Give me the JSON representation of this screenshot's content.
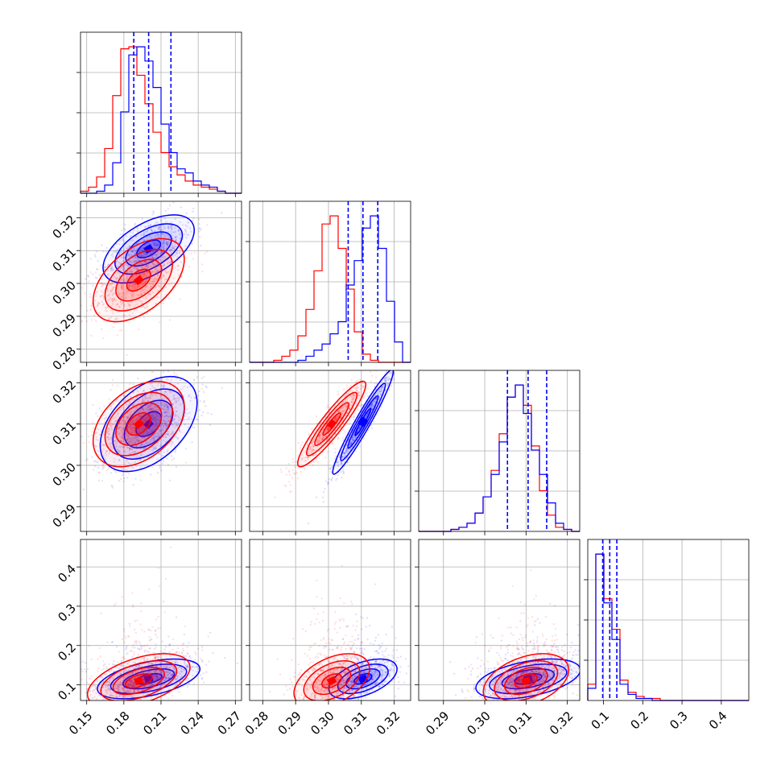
{
  "chart_data": {
    "type": "corner",
    "n_params": 4,
    "series": [
      {
        "name": "",
        "color": "#0000ff"
      },
      {
        "name": "",
        "color": "#ff0000"
      }
    ],
    "grid": true,
    "param_ranges": [
      [
        0.145,
        0.275
      ],
      [
        0.276,
        0.325
      ],
      [
        0.284,
        0.323
      ],
      [
        0.06,
        0.47
      ]
    ],
    "param_ticks": [
      {
        "values": [
          0.15,
          0.18,
          0.21,
          0.24,
          0.27
        ],
        "labels": [
          "0.15",
          "0.18",
          "0.21",
          "0.24",
          "0.27"
        ]
      },
      {
        "values": [
          0.28,
          0.29,
          0.3,
          0.31,
          0.32
        ],
        "labels": [
          "0.28",
          "0.29",
          "0.30",
          "0.31",
          "0.32"
        ]
      },
      {
        "values": [
          0.29,
          0.3,
          0.31,
          0.32
        ],
        "labels": [
          "0.29",
          "0.30",
          "0.31",
          "0.32"
        ]
      },
      {
        "values": [
          0.1,
          0.2,
          0.3,
          0.4
        ],
        "labels": [
          "0.1",
          "0.2",
          "0.3",
          "0.4"
        ]
      }
    ],
    "x_axis_ticks": [
      {
        "values": [
          0.15,
          0.18,
          0.21,
          0.24,
          0.27
        ],
        "labels": [
          "0.15",
          "0.18",
          "0.21",
          "0.24",
          "0.27"
        ]
      },
      {
        "values": [
          0.28,
          0.29,
          0.3,
          0.31,
          0.32
        ],
        "labels": [
          "0.28",
          "0.29",
          "0.30",
          "0.31",
          "0.32"
        ]
      },
      {
        "values": [
          0.29,
          0.3,
          0.31,
          0.32
        ],
        "labels": [
          "0.29",
          "0.30",
          "0.31",
          "0.32"
        ]
      },
      {
        "values": [
          0.1,
          0.2,
          0.3,
          0.4
        ],
        "labels": [
          "0.1",
          "0.2",
          "0.3",
          "0.4"
        ]
      }
    ],
    "y_axis_ticks": [
      null,
      {
        "values": [
          0.28,
          0.29,
          0.3,
          0.31,
          0.32
        ],
        "labels": [
          "0.28",
          "0.29",
          "0.30",
          "0.31",
          "0.32"
        ]
      },
      {
        "values": [
          0.29,
          0.3,
          0.31,
          0.32
        ],
        "labels": [
          "0.29",
          "0.30",
          "0.31",
          "0.32"
        ]
      },
      {
        "values": [
          0.1,
          0.2,
          0.3,
          0.4
        ],
        "labels": [
          "0.1",
          "0.2",
          "0.3",
          "0.4"
        ]
      }
    ],
    "quantile_lines": [
      [
        0.188,
        0.2,
        0.218
      ],
      [
        0.306,
        0.3105,
        0.315
      ],
      [
        0.3055,
        0.3105,
        0.315
      ],
      [
        0.098,
        0.116,
        0.134
      ]
    ],
    "histograms": [
      {
        "edges": [
          0.145,
          0.1515,
          0.158,
          0.1645,
          0.171,
          0.1775,
          0.184,
          0.1905,
          0.197,
          0.2035,
          0.21,
          0.2165,
          0.223,
          0.2295,
          0.236,
          0.2425,
          0.249,
          0.2555,
          0.262,
          0.2685,
          0.275
        ],
        "blue": [
          0,
          0,
          1,
          4,
          15,
          40,
          68,
          72,
          65,
          52,
          34,
          20,
          12,
          10,
          6,
          4,
          3,
          1,
          0,
          0
        ],
        "red": [
          1,
          3,
          8,
          22,
          48,
          71,
          72,
          58,
          44,
          30,
          20,
          13,
          9,
          6,
          4,
          3,
          2,
          1,
          0,
          0
        ]
      },
      {
        "edges": [
          0.276,
          0.27845,
          0.2809,
          0.28335,
          0.2858,
          0.28825,
          0.2907,
          0.29315,
          0.2956,
          0.29805,
          0.3005,
          0.30295,
          0.3054,
          0.30785,
          0.3103,
          0.31275,
          0.3152,
          0.31765,
          0.3201,
          0.32255,
          0.325
        ],
        "blue": [
          0,
          0,
          0,
          0,
          0,
          0,
          1,
          3,
          6,
          9,
          14,
          20,
          38,
          50,
          66,
          72,
          56,
          30,
          10,
          0
        ],
        "red": [
          0,
          0,
          0,
          1,
          3,
          6,
          13,
          26,
          45,
          68,
          72,
          56,
          36,
          15,
          4,
          1,
          0,
          0,
          0,
          0
        ]
      },
      {
        "edges": [
          0.284,
          0.28595,
          0.2879,
          0.28985,
          0.2918,
          0.29375,
          0.2957,
          0.29765,
          0.2996,
          0.30155,
          0.3035,
          0.30545,
          0.3074,
          0.30935,
          0.3113,
          0.31325,
          0.3152,
          0.31715,
          0.3191,
          0.32105,
          0.323
        ],
        "blue": [
          0,
          0,
          0,
          0,
          1,
          2,
          4,
          9,
          17,
          28,
          44,
          66,
          72,
          58,
          40,
          28,
          14,
          4,
          1,
          0
        ],
        "red": [
          0,
          0,
          0,
          0,
          1,
          2,
          4,
          9,
          17,
          30,
          48,
          66,
          72,
          62,
          42,
          20,
          8,
          2,
          1,
          0
        ]
      },
      {
        "edges": [
          0.06,
          0.0805,
          0.101,
          0.1215,
          0.142,
          0.1625,
          0.183,
          0.2035,
          0.224,
          0.2445,
          0.265,
          0.2855,
          0.306,
          0.3265,
          0.347,
          0.3675,
          0.388,
          0.4085,
          0.429,
          0.4495,
          0.47
        ],
        "blue": [
          6,
          72,
          48,
          30,
          8,
          3,
          1,
          1,
          0,
          0,
          0,
          0,
          0,
          0,
          0,
          0,
          0,
          0,
          0,
          0
        ],
        "red": [
          8,
          72,
          50,
          35,
          10,
          4,
          2,
          1,
          1,
          0,
          0,
          0,
          0,
          0,
          0,
          0,
          0,
          0,
          0,
          0
        ]
      }
    ],
    "pair_distributions": [
      {
        "x": 0,
        "y": 1,
        "blue": {
          "mean": [
            0.2,
            0.3105
          ],
          "sd": [
            0.016,
            0.0045
          ],
          "rho": 0.55
        },
        "red": {
          "mean": [
            0.192,
            0.301
          ],
          "sd": [
            0.016,
            0.0055
          ],
          "rho": 0.5
        }
      },
      {
        "x": 0,
        "y": 2,
        "blue": {
          "mean": [
            0.2,
            0.31
          ],
          "sd": [
            0.017,
            0.005
          ],
          "rho": 0.45
        },
        "red": {
          "mean": [
            0.192,
            0.31
          ],
          "sd": [
            0.016,
            0.0045
          ],
          "rho": 0.4
        }
      },
      {
        "x": 1,
        "y": 2,
        "blue": {
          "mean": [
            0.3105,
            0.3105
          ],
          "sd": [
            0.004,
            0.0055
          ],
          "rho": 0.96
        },
        "red": {
          "mean": [
            0.301,
            0.31
          ],
          "sd": [
            0.0045,
            0.0045
          ],
          "rho": 0.92
        }
      },
      {
        "x": 0,
        "y": 3,
        "blue": {
          "mean": [
            0.2,
            0.115
          ],
          "sd": [
            0.018,
            0.022
          ],
          "rho": 0.5
        },
        "red": {
          "mean": [
            0.192,
            0.11
          ],
          "sd": [
            0.018,
            0.03
          ],
          "rho": 0.5
        }
      },
      {
        "x": 1,
        "y": 3,
        "blue": {
          "mean": [
            0.3105,
            0.115
          ],
          "sd": [
            0.0045,
            0.022
          ],
          "rho": 0.5
        },
        "red": {
          "mean": [
            0.301,
            0.11
          ],
          "sd": [
            0.005,
            0.03
          ],
          "rho": 0.45
        }
      },
      {
        "x": 2,
        "y": 3,
        "blue": {
          "mean": [
            0.3105,
            0.115
          ],
          "sd": [
            0.0055,
            0.022
          ],
          "rho": 0.45
        },
        "red": {
          "mean": [
            0.31,
            0.11
          ],
          "sd": [
            0.0045,
            0.03
          ],
          "rho": 0.4
        }
      }
    ]
  }
}
